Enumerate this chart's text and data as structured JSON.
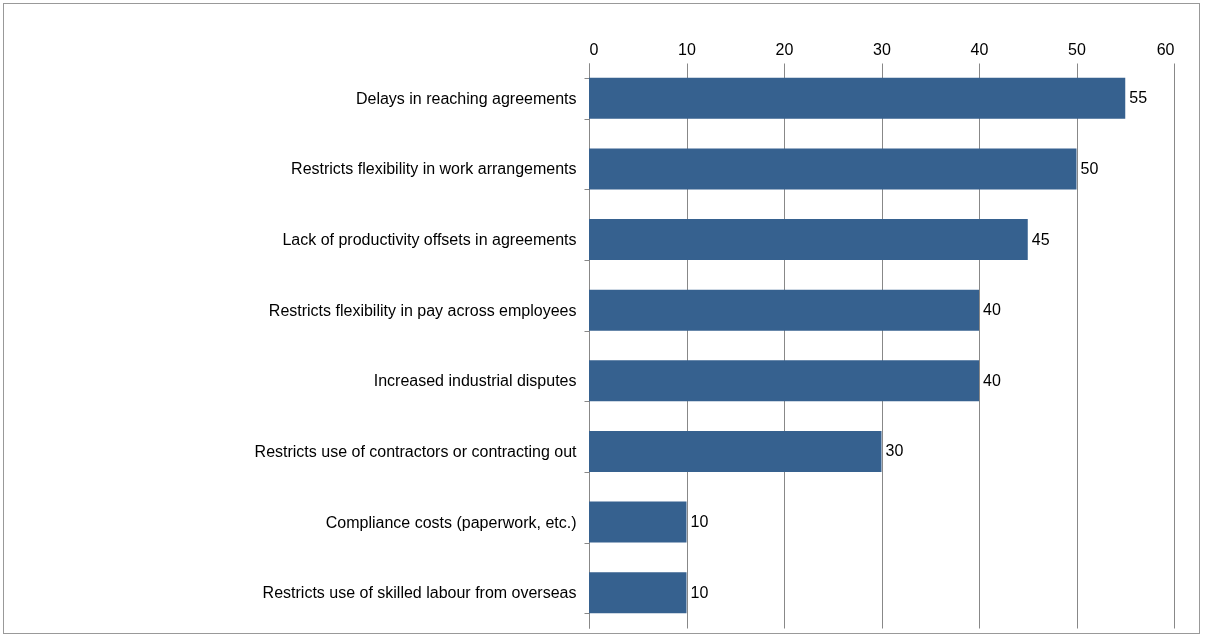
{
  "chart_data": {
    "type": "bar",
    "orientation": "horizontal",
    "categories": [
      "Delays in reaching agreements",
      "Restricts flexibility in work arrangements",
      "Lack of productivity offsets in agreements",
      "Restricts flexibility in pay across employees",
      "Increased industrial disputes",
      "Restricts use of contractors or contracting out",
      "Compliance costs (paperwork, etc.)",
      "Restricts use of skilled labour from overseas"
    ],
    "values": [
      55,
      50,
      45,
      40,
      40,
      30,
      10,
      10
    ],
    "color": "#36618f",
    "xlim": [
      0,
      60
    ],
    "xticks": [
      0,
      10,
      20,
      30,
      40,
      50,
      60
    ],
    "grid": "x",
    "data_labels": true
  }
}
